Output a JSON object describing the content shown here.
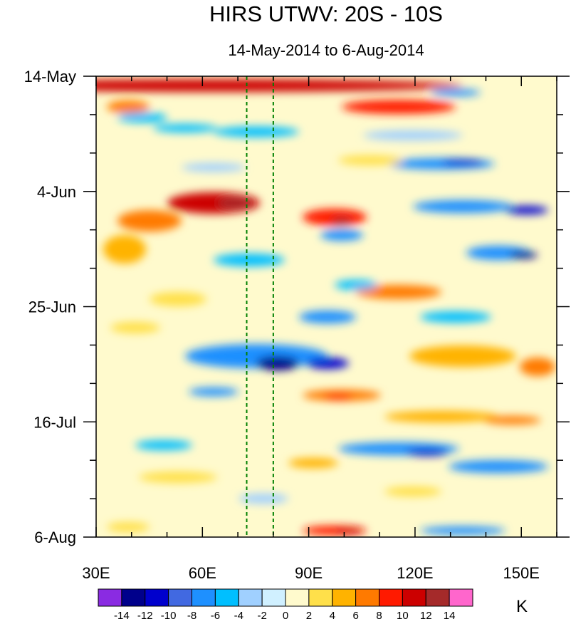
{
  "chart_data": {
    "type": "heatmap",
    "title": "HIRS UTWV: 20S - 10S",
    "subtitle": "14-May-2014 to 6-Aug-2014",
    "x_ticks": [
      {
        "label": "30E",
        "value": 30
      },
      {
        "label": "60E",
        "value": 60
      },
      {
        "label": "90E",
        "value": 90
      },
      {
        "label": "120E",
        "value": 120
      },
      {
        "label": "150E",
        "value": 150
      }
    ],
    "xlim": [
      30,
      160
    ],
    "y_ticks": [
      {
        "label": "14-May",
        "day": 0
      },
      {
        "label": "4-Jun",
        "day": 21
      },
      {
        "label": "25-Jun",
        "day": 42
      },
      {
        "label": "16-Jul",
        "day": 63
      },
      {
        "label": "6-Aug",
        "day": 84
      }
    ],
    "ylim": [
      0,
      84
    ],
    "reference_lines_lon": [
      72.5,
      80
    ],
    "colorbar": {
      "unit": "K",
      "colors": [
        "#8a2be2",
        "#00008b",
        "#0000cd",
        "#4169e1",
        "#1e90ff",
        "#00bfff",
        "#a0d0ff",
        "#d0f0ff",
        "#fffacd",
        "#ffe04a",
        "#ffb300",
        "#ff7a00",
        "#ff1a00",
        "#cc0000",
        "#a52a2a",
        "#ff66cc"
      ],
      "tick_labels": [
        "-14",
        "-12",
        "-10",
        "-8",
        "-6",
        "-4",
        "-2",
        "0",
        "2",
        "4",
        "6",
        "8",
        "10",
        "12",
        "14"
      ]
    }
  }
}
